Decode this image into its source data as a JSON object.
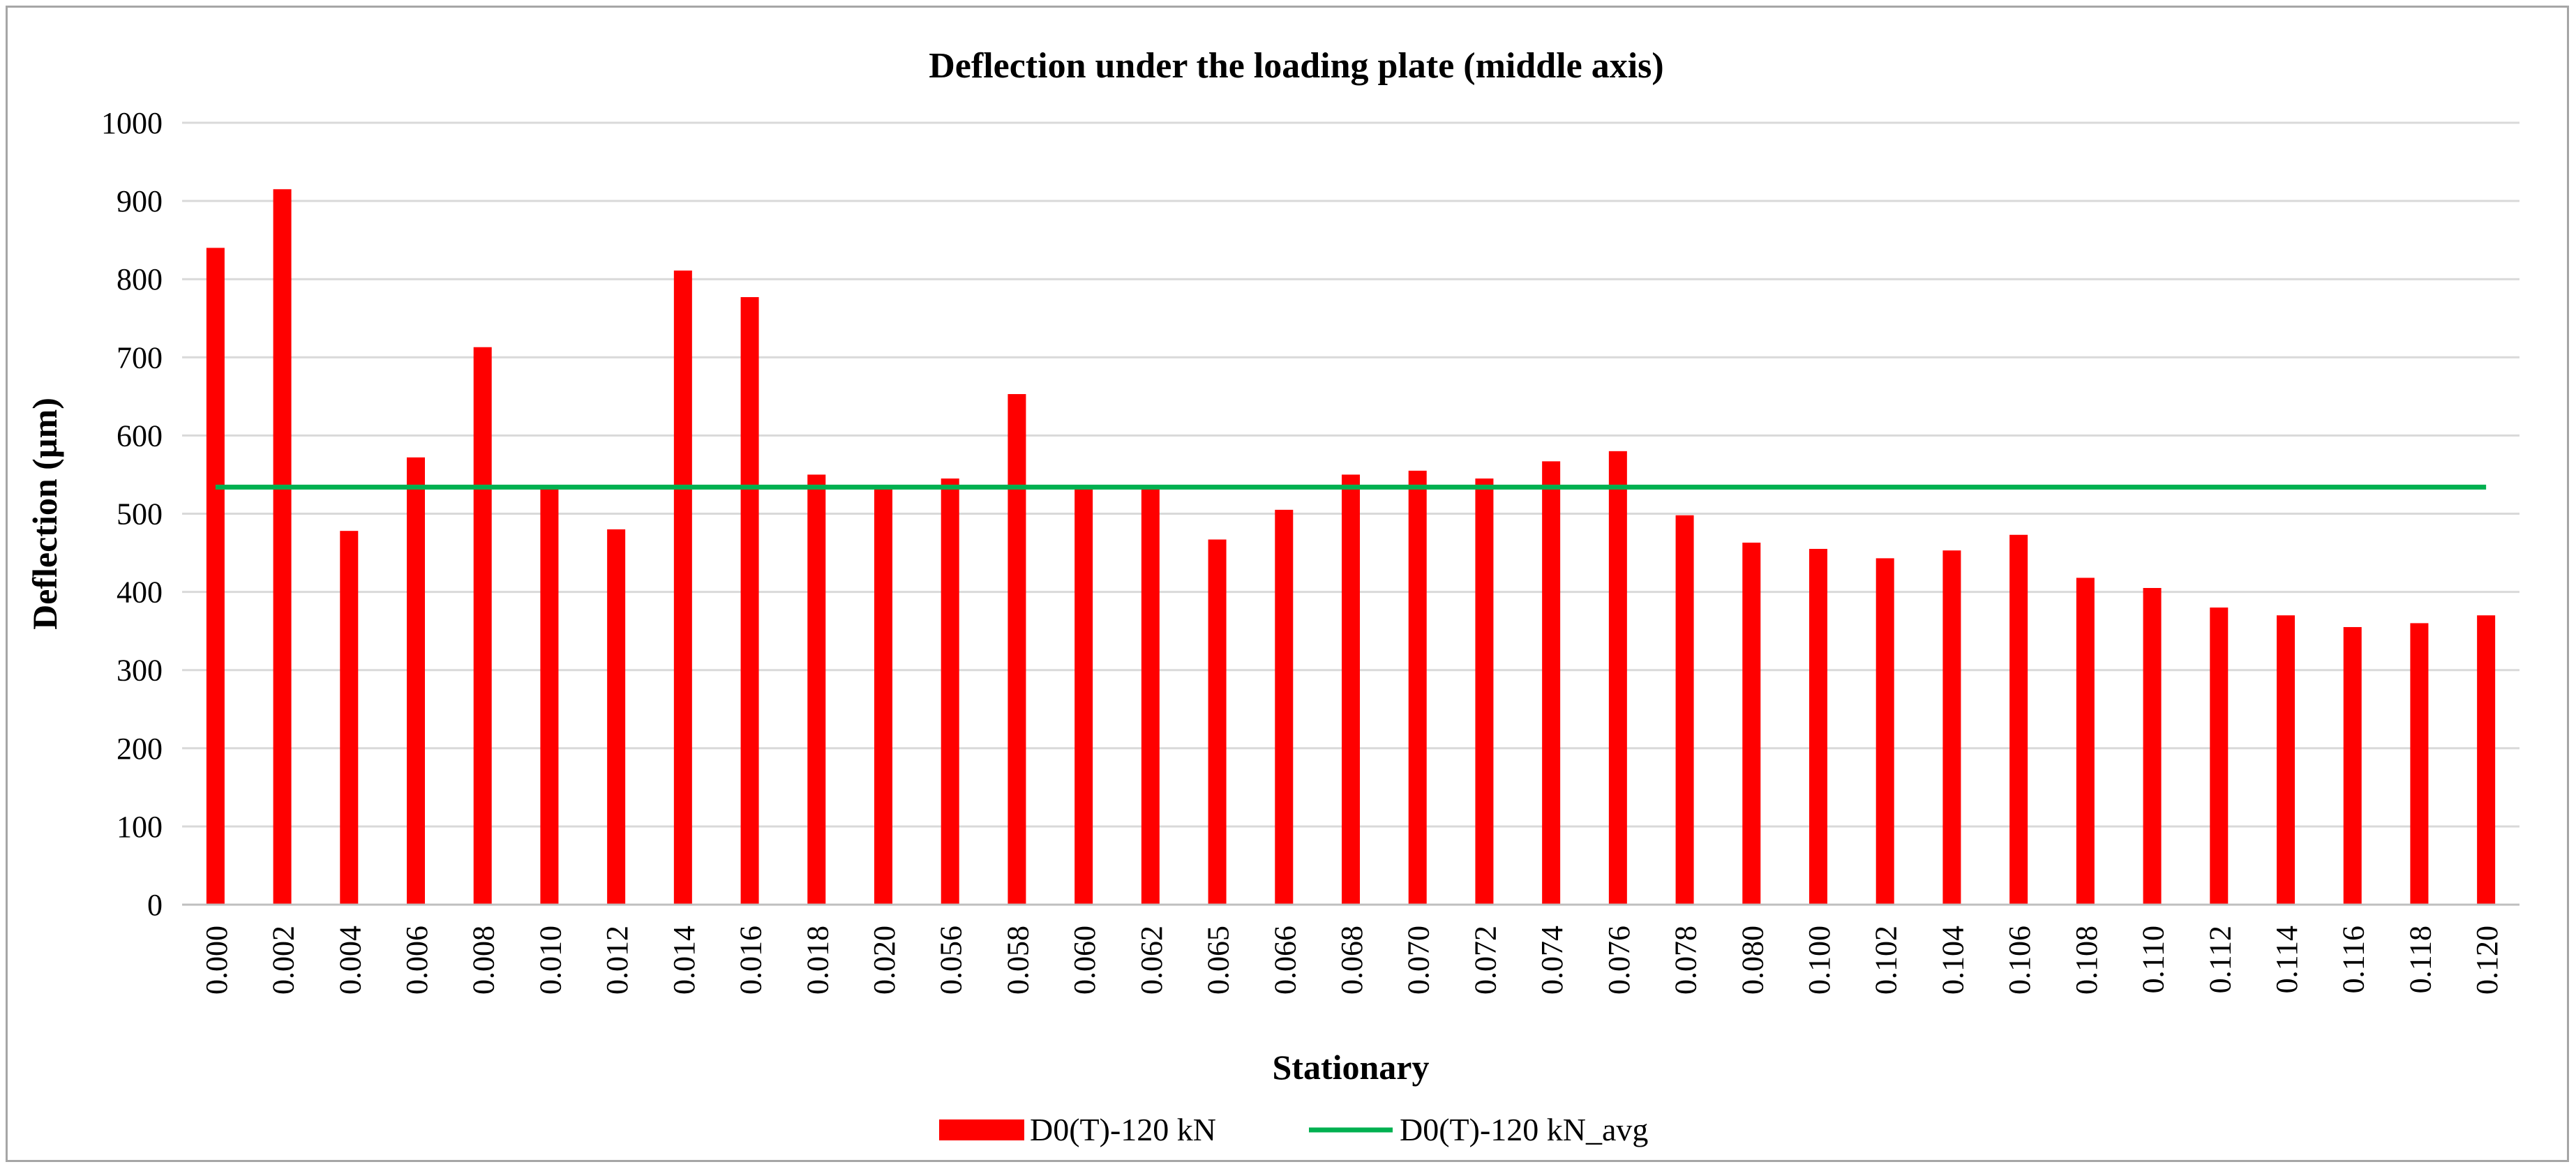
{
  "chart_data": {
    "type": "bar",
    "title": "Deflection under the loading plate (middle axis)",
    "xlabel": "Stationary",
    "ylabel": "Deflection (µm)",
    "ylim": [
      0,
      1000
    ],
    "yticks": [
      0,
      100,
      200,
      300,
      400,
      500,
      600,
      700,
      800,
      900,
      1000
    ],
    "grid": true,
    "legend_position": "bottom",
    "categories": [
      "0.000",
      "0.002",
      "0.004",
      "0.006",
      "0.008",
      "0.010",
      "0.012",
      "0.014",
      "0.016",
      "0.018",
      "0.020",
      "0.056",
      "0.058",
      "0.060",
      "0.062",
      "0.065",
      "0.066",
      "0.068",
      "0.070",
      "0.072",
      "0.074",
      "0.076",
      "0.078",
      "0.080",
      "0.100",
      "0.102",
      "0.104",
      "0.106",
      "0.108",
      "0.110",
      "0.112",
      "0.114",
      "0.116",
      "0.118",
      "0.120"
    ],
    "series": [
      {
        "name": "D0(T)-120 kN",
        "kind": "bar",
        "color": "#ff0000",
        "values": [
          840,
          915,
          478,
          572,
          713,
          533,
          480,
          811,
          777,
          550,
          533,
          545,
          653,
          533,
          533,
          467,
          505,
          550,
          555,
          545,
          567,
          580,
          498,
          463,
          455,
          443,
          453,
          473,
          418,
          405,
          380,
          370,
          355,
          360,
          370
        ]
      },
      {
        "name": "D0(T)-120 kN_avg",
        "kind": "line",
        "color": "#00b050",
        "value": 534
      }
    ]
  }
}
